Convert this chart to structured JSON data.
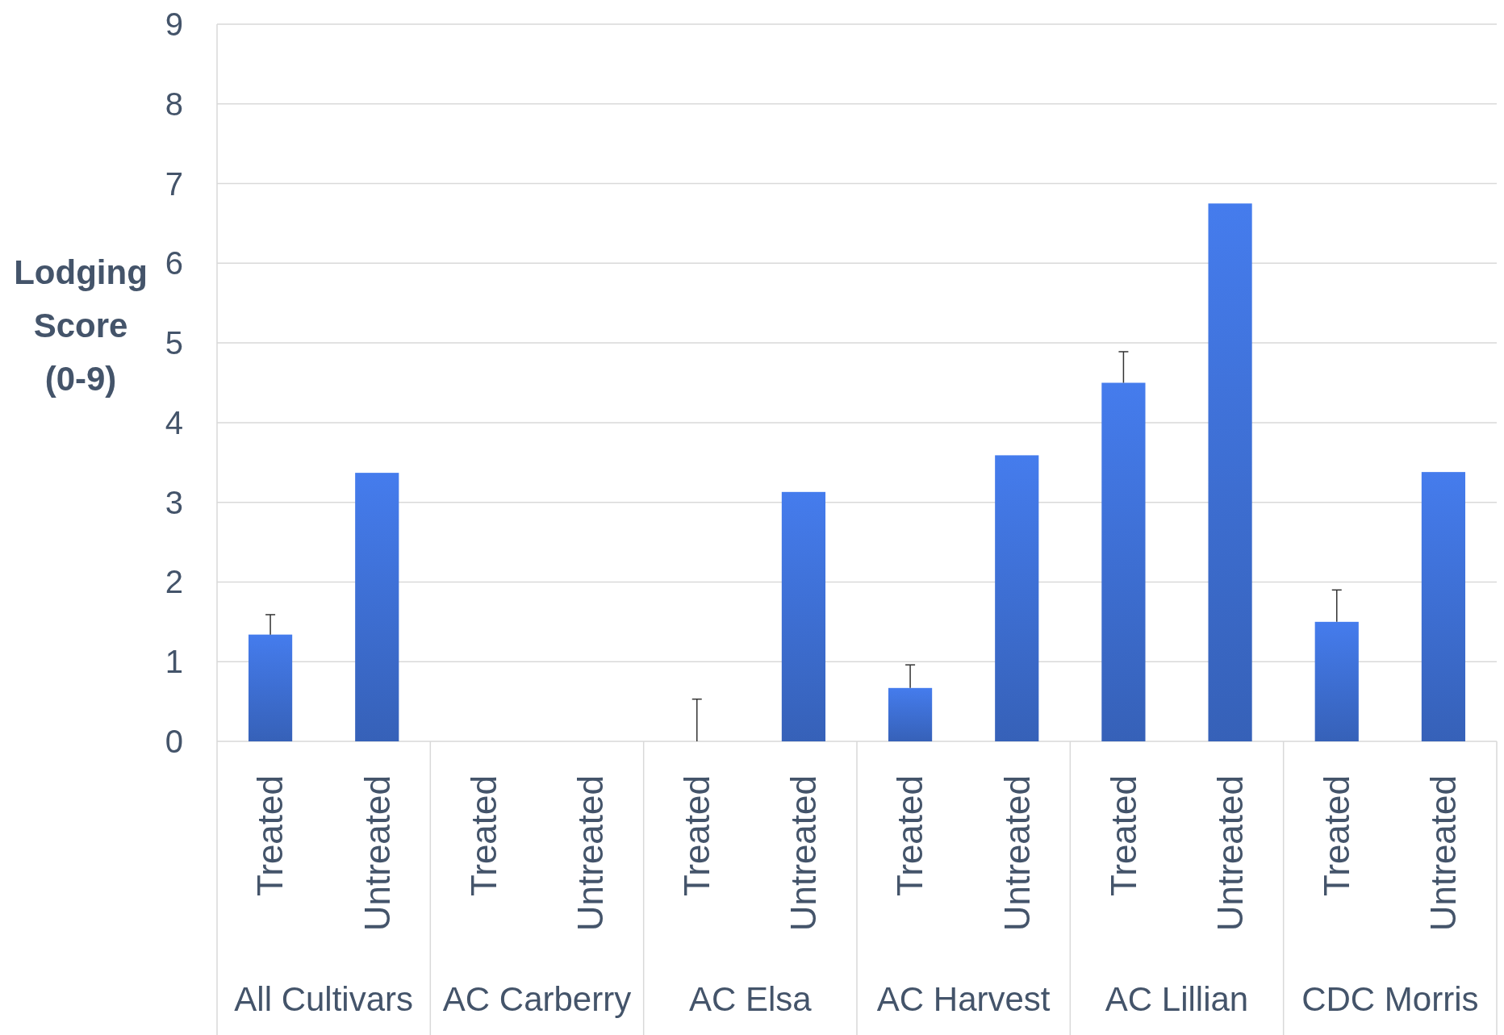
{
  "chart_data": {
    "type": "bar",
    "ylabel": "Lodging Score (0-9)",
    "categories": [
      "Treated",
      "Untreated",
      "Treated",
      "Untreated",
      "Treated",
      "Untreated",
      "Treated",
      "Untreated",
      "Treated",
      "Untreated",
      "Treated",
      "Untreated"
    ],
    "annotations": [
      "All Cultivars",
      "AC Carberry",
      "AC Elsa",
      "AC Harvest",
      "AC Lillian",
      "CDC Morris"
    ],
    "values": [
      1.34,
      3.37,
      0,
      0,
      0,
      3.13,
      0.67,
      3.59,
      4.5,
      6.75,
      1.5,
      3.38
    ],
    "errors": [
      [
        1.34,
        1.59
      ],
      null,
      null,
      null,
      [
        0,
        0.53
      ],
      null,
      [
        0.67,
        0.96
      ],
      null,
      [
        4.5,
        4.89
      ],
      null,
      [
        1.5,
        1.9
      ],
      null
    ],
    "color": "#3a68c6",
    "ylim": [
      0,
      9
    ],
    "yticks": [
      0,
      1,
      2,
      3,
      4,
      5,
      6,
      7,
      8,
      9
    ],
    "grid": "y"
  }
}
